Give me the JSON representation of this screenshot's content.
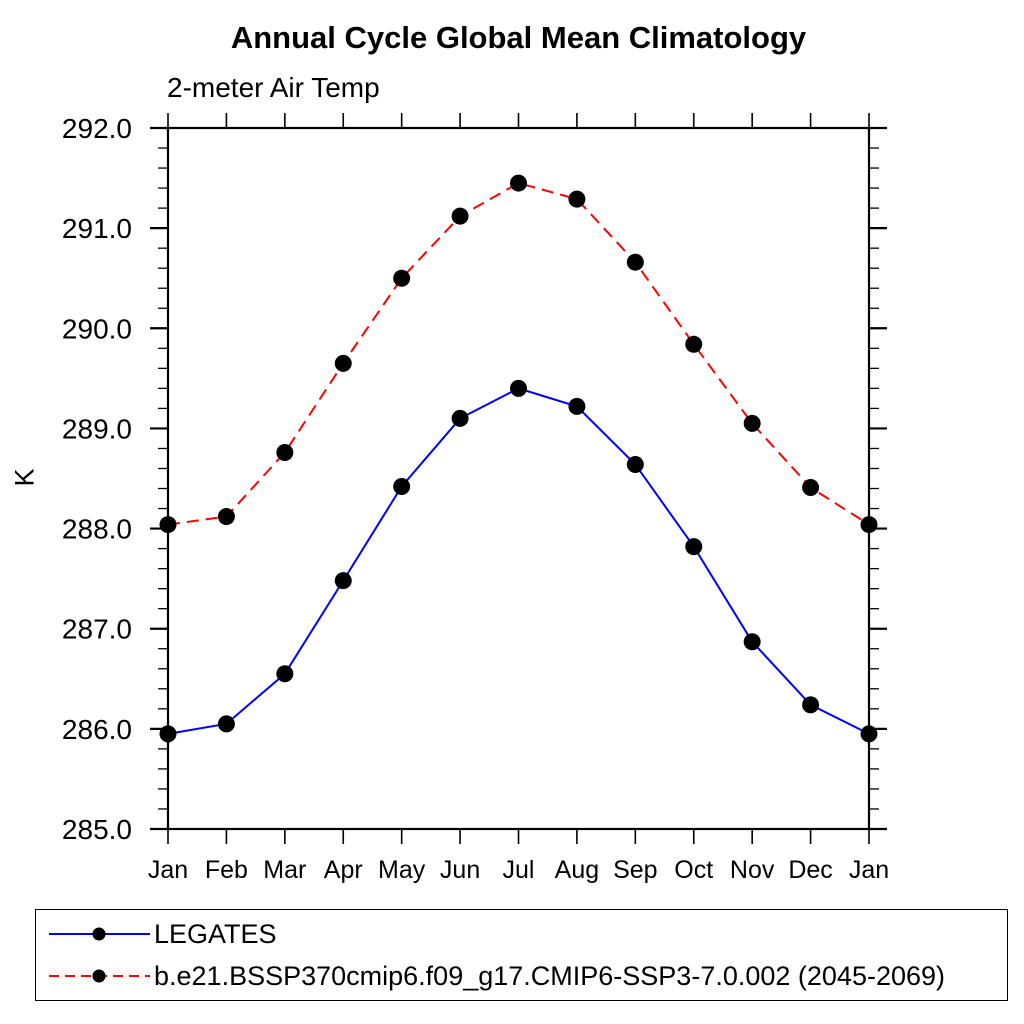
{
  "chart": {
    "title": "Annual Cycle Global Mean Climatology",
    "subtitle": "2-meter Air Temp",
    "y_axis_label": "K"
  },
  "chart_data": {
    "type": "line",
    "title": "Annual Cycle Global Mean Climatology",
    "subtitle": "2-meter Air Temp",
    "xlabel": "",
    "ylabel": "K",
    "x_categories": [
      "Jan",
      "Feb",
      "Mar",
      "Apr",
      "May",
      "Jun",
      "Jul",
      "Aug",
      "Sep",
      "Oct",
      "Nov",
      "Dec",
      "Jan"
    ],
    "ylim": [
      285.0,
      292.0
    ],
    "y_major_ticks": [
      285.0,
      286.0,
      287.0,
      288.0,
      289.0,
      290.0,
      291.0,
      292.0
    ],
    "y_tick_labels": [
      "285.0",
      "286.0",
      "287.0",
      "288.0",
      "289.0",
      "290.0",
      "291.0",
      "292.0"
    ],
    "y_minor_step": 0.2,
    "grid": false,
    "legend_position": "bottom-left-box",
    "axis_color": "#000000",
    "series": [
      {
        "name": "LEGATES",
        "color": "#0000ff",
        "line_style": "solid",
        "marker": "filled-circle",
        "marker_color": "#000000",
        "values": [
          285.95,
          286.05,
          286.55,
          287.48,
          288.42,
          289.1,
          289.4,
          289.22,
          288.64,
          287.82,
          286.87,
          286.24,
          285.95
        ]
      },
      {
        "name": "b.e21.BSSP370cmip6.f09_g17.CMIP6-SSP3-7.0.002 (2045-2069)",
        "color": "#ff0000",
        "line_style": "dashed",
        "marker": "filled-circle",
        "marker_color": "#000000",
        "values": [
          288.04,
          288.12,
          288.76,
          289.65,
          290.5,
          291.12,
          291.45,
          291.29,
          290.66,
          289.84,
          289.05,
          288.41,
          288.04
        ]
      }
    ]
  }
}
